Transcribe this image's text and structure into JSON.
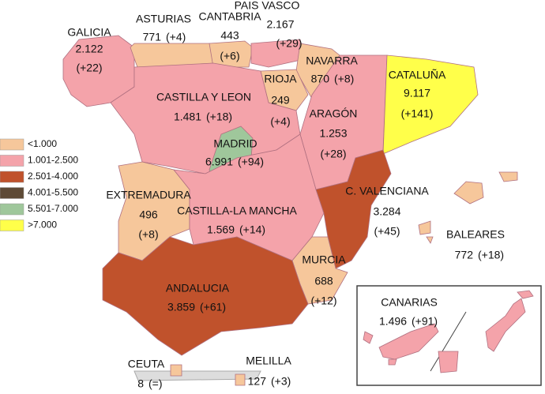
{
  "legend": [
    {
      "label": "<1.000",
      "color": "#f6c79b"
    },
    {
      "label": "1.001-2.500",
      "color": "#f4a3aa"
    },
    {
      "label": "2.501-4.000",
      "color": "#c0522c"
    },
    {
      "label": "4.001-5.500",
      "color": "#5e4a36"
    },
    {
      "label": "5.501-7.000",
      "color": "#9fc79b"
    },
    {
      "label": ">7.000",
      "color": "#ffff4a"
    }
  ],
  "regions": [
    {
      "name": "GALICIA",
      "value": "2.122",
      "change": "(+22)",
      "color": "#f4a3aa"
    },
    {
      "name": "ASTURIAS",
      "value": "771",
      "change": "(+4)",
      "color": "#f6c79b"
    },
    {
      "name": "CANTABRIA",
      "value": "443",
      "change": "(+6)",
      "color": "#f6c79b"
    },
    {
      "name": "PAIS VASCO",
      "value": "2.167",
      "change": "(+29)",
      "color": "#f4a3aa"
    },
    {
      "name": "NAVARRA",
      "value": "870",
      "change": "(+8)",
      "color": "#f6c79b"
    },
    {
      "name": "RIOJA",
      "value": "249",
      "change": "(+4)",
      "color": "#f6c79b"
    },
    {
      "name": "ARAGÓN",
      "value": "1.253",
      "change": "(+28)",
      "color": "#f4a3aa"
    },
    {
      "name": "CATALUÑA",
      "value": "9.117",
      "change": "(+141)",
      "color": "#ffff4a"
    },
    {
      "name": "CASTILLA Y LEON",
      "value": "1.481",
      "change": "(+18)",
      "color": "#f4a3aa"
    },
    {
      "name": "MADRID",
      "value": "6.991",
      "change": "(+94)",
      "color": "#9fc79b"
    },
    {
      "name": "EXTREMADURA",
      "value": "496",
      "change": "(+8)",
      "color": "#f6c79b"
    },
    {
      "name": "CASTILLA-LA MANCHA",
      "value": "1.569",
      "change": "(+14)",
      "color": "#f4a3aa"
    },
    {
      "name": "C. VALENCIANA",
      "value": "3.284",
      "change": "(+45)",
      "color": "#c0522c"
    },
    {
      "name": "MURCIA",
      "value": "688",
      "change": "(+12)",
      "color": "#f6c79b"
    },
    {
      "name": "ANDALUCIA",
      "value": "3.859",
      "change": "(+61)",
      "color": "#c0522c"
    },
    {
      "name": "BALEARES",
      "value": "772",
      "change": "(+18)",
      "color": "#f6c79b"
    },
    {
      "name": "CANARIAS",
      "value": "1.496",
      "change": "(+91)",
      "color": "#f4a3aa"
    },
    {
      "name": "CEUTA",
      "value": "8",
      "change": "(=)",
      "color": "#f6c79b"
    },
    {
      "name": "MELILLA",
      "value": "127",
      "change": "(+3)",
      "color": "#f6c79b"
    }
  ]
}
